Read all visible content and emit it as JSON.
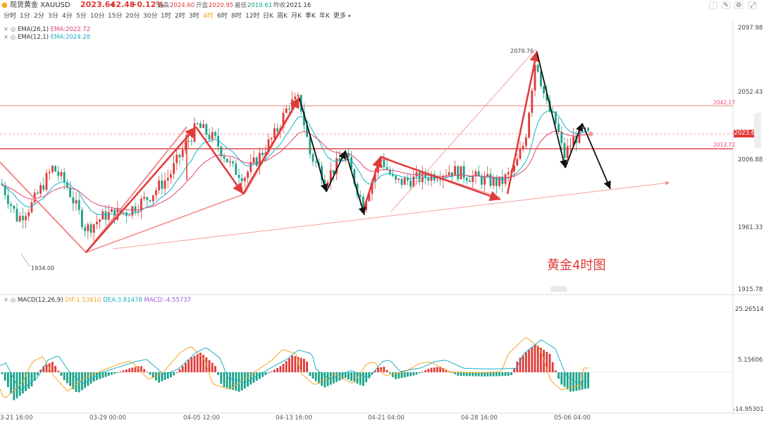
{
  "header": {
    "instrument": "现货黄金 XAUUSD",
    "price": "2023.64",
    "change": "+2.48",
    "change_pct": "+0.12%",
    "high_label": "最高",
    "high": "2024.60",
    "open_label": "开盘",
    "open": "2020.95",
    "low_label": "最低",
    "low": "2019.61",
    "prev_label": "昨收",
    "prev": "2021.16"
  },
  "timeframes": [
    "分时",
    "1分",
    "2分",
    "3分",
    "4分",
    "5分",
    "10分",
    "15分",
    "20分",
    "30分",
    "1时",
    "2时",
    "3时",
    "4时",
    "6时",
    "8时",
    "12时",
    "日K",
    "周K",
    "月K",
    "季K",
    "年K",
    "更多"
  ],
  "active_timeframe": "4时",
  "toolbar_icons": [
    "kline-type-icon",
    "draw-tool-icon",
    "settings-icon",
    "fullscreen-icon"
  ],
  "ema": [
    {
      "label": "EMA(26,1)",
      "value": "EMA:2022.72",
      "color": "#e0486e"
    },
    {
      "label": "EMA(12,1)",
      "value": "EMA:2024.28",
      "color": "#1ab0c4"
    }
  ],
  "macd_legend": {
    "label": "MACD(12,26,9)",
    "dif": "DIF:1.53610",
    "dea": "DEA:3.81478",
    "macd": "MACD:-4.55737"
  },
  "price_axis": [
    "2097.98",
    "2052.43",
    "2006.88",
    "1961.33",
    "1915.78"
  ],
  "current_price_tag": "2023.64",
  "level_lines": [
    "2042.17",
    "2013.72"
  ],
  "annotations": {
    "high": "2079.76",
    "low": "1934.00"
  },
  "macd_axis": [
    "25.26514",
    "5.15606",
    "-14.95301"
  ],
  "x_labels": [
    "3-21 16:00",
    "03-29 00:00",
    "04-05 12:00",
    "04-13 16:00",
    "04-21 04:00",
    "04-28 16:00",
    "05-06 04:00"
  ],
  "chart_title": "黄金4时图",
  "colors": {
    "up": "#e03a3a",
    "down": "#1aa287",
    "accent": "#f5a623"
  }
}
